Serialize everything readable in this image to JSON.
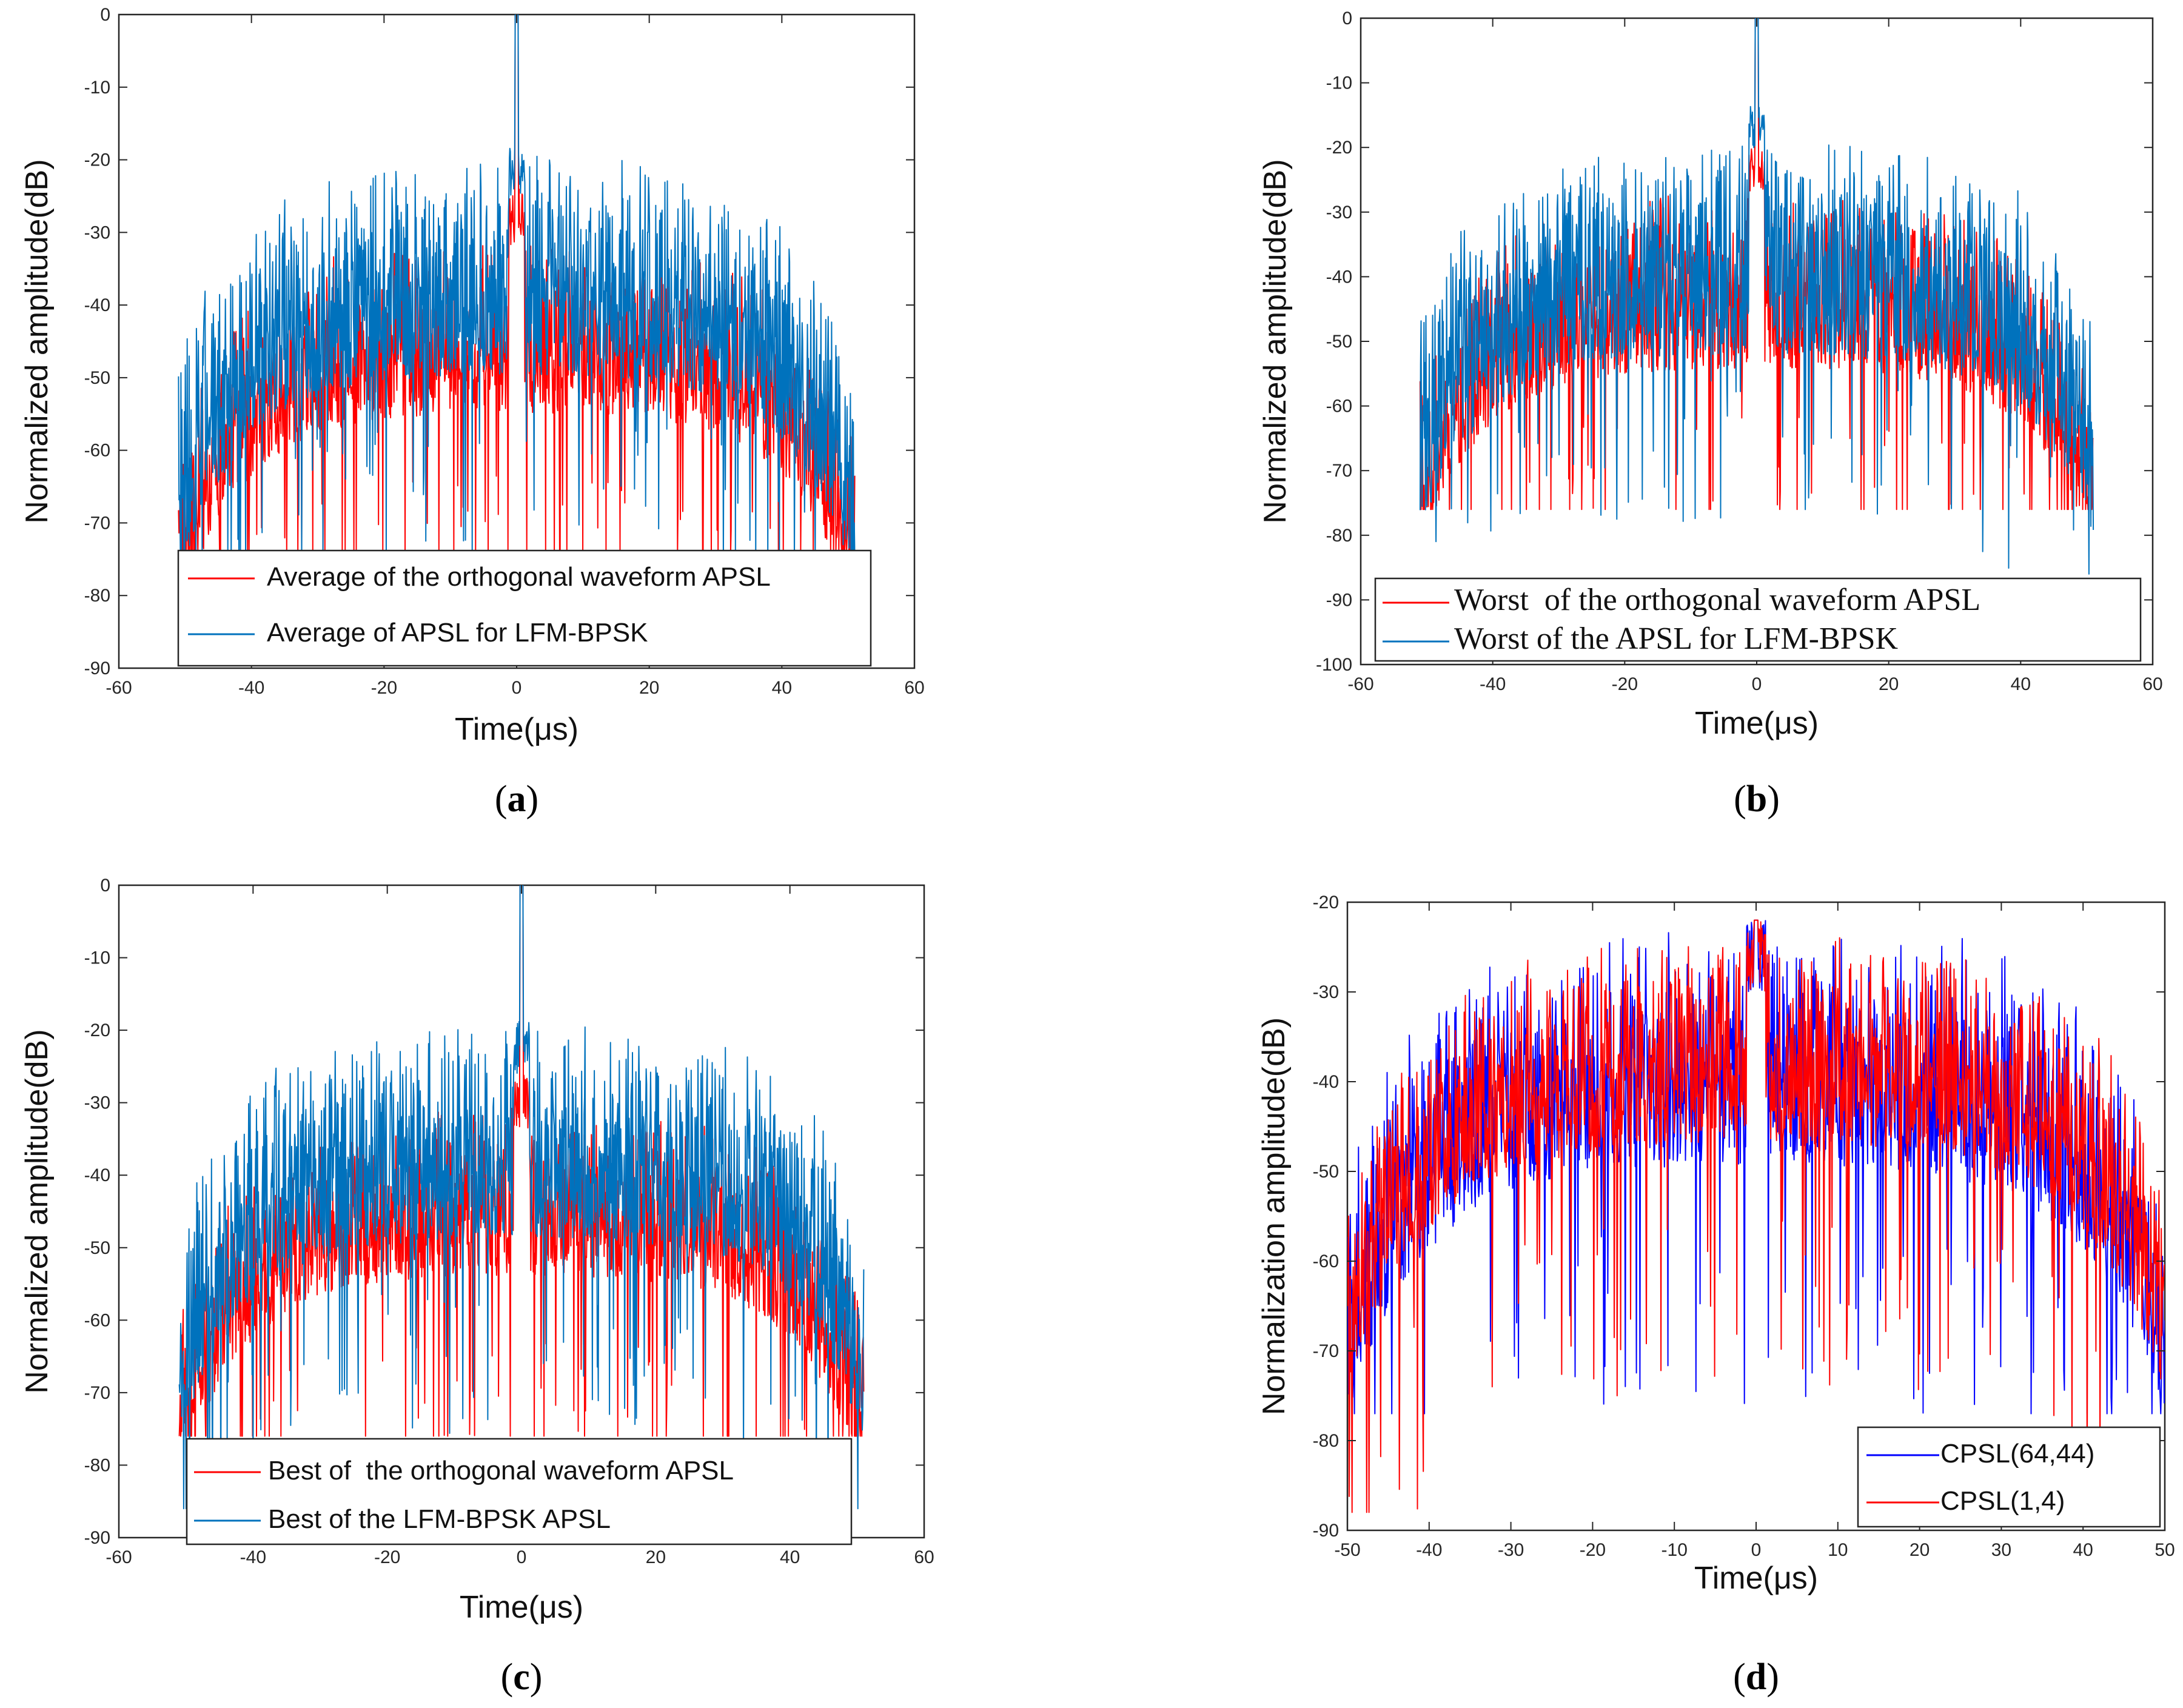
{
  "colors": {
    "red": "#ff0000",
    "lightblue": "#0072bd",
    "blue": "#0000ff",
    "axis": "#262626"
  },
  "chart_data": [
    {
      "id": "a",
      "caption_letter": "a",
      "type": "line",
      "xlabel": "Time(μs)",
      "ylabel": "Normalized amplitude(dB)",
      "xlim": [
        -60,
        60
      ],
      "ylim": [
        -90,
        0
      ],
      "xticks": [
        "-60",
        "-40",
        "-20",
        "0",
        "20",
        "40",
        "60"
      ],
      "yticks": [
        "0",
        "-10",
        "-20",
        "-30",
        "-40",
        "-50",
        "-60",
        "-70",
        "-80",
        "-90"
      ],
      "x_extent": [
        -51,
        51
      ],
      "legend": {
        "position": "bottom-center",
        "entries": [
          "Average of the orthogonal waveform APSL",
          "Average of APSL for LFM-BPSK"
        ]
      },
      "series": [
        {
          "name": "Average of the orthogonal waveform APSL",
          "color": "#ff0000",
          "envelope_center_db": -31,
          "spread_db": 14,
          "min_db": -74,
          "peak_db": 0,
          "near_peak_db": -24
        },
        {
          "name": "Average of APSL for LFM-BPSK",
          "color": "#0072bd",
          "envelope_center_db": -19,
          "spread_db": 18,
          "min_db": -76,
          "peak_db": 0,
          "near_peak_db": -17
        }
      ]
    },
    {
      "id": "b",
      "caption_letter": "b",
      "type": "line",
      "xlabel": "Time(μs)",
      "ylabel": "Normalized amplitude(dB)",
      "xlim": [
        -60,
        60
      ],
      "ylim": [
        -100,
        0
      ],
      "xticks": [
        "-60",
        "-40",
        "-20",
        "0",
        "20",
        "40",
        "60"
      ],
      "yticks": [
        "0",
        "-10",
        "-20",
        "-30",
        "-40",
        "-50",
        "-60",
        "-70",
        "-80",
        "-90",
        "-100"
      ],
      "x_extent": [
        -51,
        51
      ],
      "legend": {
        "position": "bottom-right",
        "entries": [
          "Worst  of the orthogonal waveform APSL",
          "Worst of the APSL for LFM-BPSK"
        ]
      },
      "series": [
        {
          "name": "Worst  of the orthogonal waveform APSL",
          "color": "#ff0000",
          "envelope_center_db": -27,
          "spread_db": 16,
          "min_db": -76,
          "peak_db": 0,
          "near_peak_db": -20
        },
        {
          "name": "Worst of the APSL for LFM-BPSK",
          "color": "#0072bd",
          "envelope_center_db": -18,
          "spread_db": 20,
          "min_db": -86,
          "peak_db": 0,
          "near_peak_db": -13
        }
      ]
    },
    {
      "id": "c",
      "caption_letter": "c",
      "type": "line",
      "xlabel": "Time(μs)",
      "ylabel": "Normalized amplitude(dB)",
      "xlim": [
        -60,
        60
      ],
      "ylim": [
        -90,
        0
      ],
      "xticks": [
        "-60",
        "-40",
        "-20",
        "0",
        "20",
        "40",
        "60"
      ],
      "yticks": [
        "0",
        "-10",
        "-20",
        "-30",
        "-40",
        "-50",
        "-60",
        "-70",
        "-80",
        "-90"
      ],
      "x_extent": [
        -51,
        51
      ],
      "legend": {
        "position": "bottom-center",
        "entries": [
          "Best of  the orthogonal waveform APSL",
          "Best of the LFM-BPSK APSL"
        ]
      },
      "series": [
        {
          "name": "Best of  the orthogonal waveform APSL",
          "color": "#ff0000",
          "envelope_center_db": -30,
          "spread_db": 14,
          "min_db": -76,
          "peak_db": 0,
          "near_peak_db": -26
        },
        {
          "name": "Best of the LFM-BPSK APSL",
          "color": "#0072bd",
          "envelope_center_db": -18,
          "spread_db": 18,
          "min_db": -86,
          "peak_db": 0,
          "near_peak_db": -18
        }
      ]
    },
    {
      "id": "d",
      "caption_letter": "d",
      "type": "line",
      "xlabel": "Time(μs)",
      "ylabel": "Normalization amplitude(dB)",
      "xlim": [
        -50,
        50
      ],
      "ylim": [
        -90,
        -20
      ],
      "xticks": [
        "-50",
        "-40",
        "-30",
        "-20",
        "-10",
        "0",
        "10",
        "20",
        "30",
        "40",
        "50"
      ],
      "yticks": [
        "-20",
        "-30",
        "-40",
        "-50",
        "-60",
        "-70",
        "-80",
        "-90"
      ],
      "x_extent": [
        -50,
        50
      ],
      "legend": {
        "position": "bottom-right",
        "entries": [
          "CPSL(64,44)",
          "CPSL(1,4)"
        ]
      },
      "series": [
        {
          "name": "CPSL(64,44)",
          "color": "#0000ff",
          "envelope_center_db": -22,
          "spread_db": 16,
          "min_db": -77,
          "peak_db": -22,
          "near_peak_db": -22
        },
        {
          "name": "CPSL(1,4)",
          "color": "#ff0000",
          "envelope_center_db": -23,
          "spread_db": 14,
          "min_db": -88,
          "peak_db": -22,
          "near_peak_db": -22
        }
      ]
    }
  ]
}
